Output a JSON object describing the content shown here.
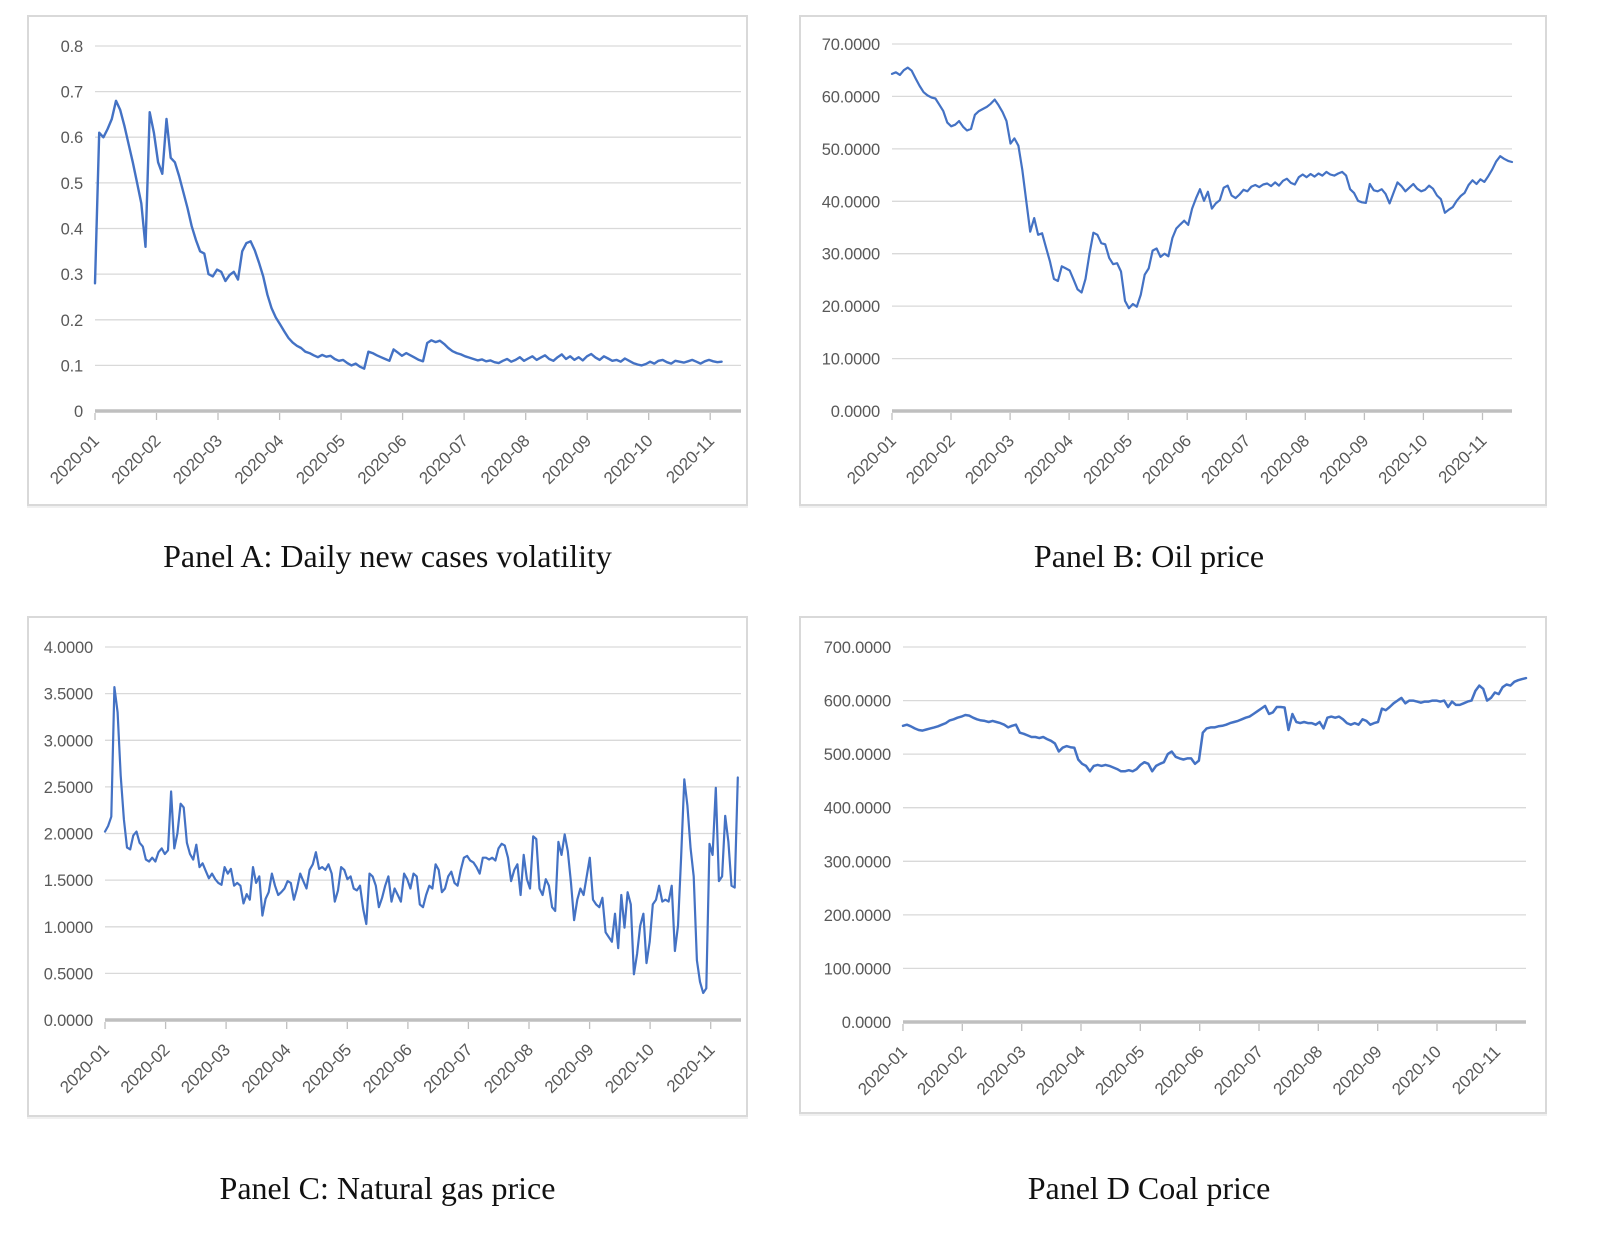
{
  "page": {
    "background": "#ffffff"
  },
  "colors": {
    "line": "#4472C4",
    "grid": "#D9D9D9",
    "axis": "#BFBFBF",
    "tick_text": "#595959",
    "caption_text": "#111111",
    "panel_border": "#D9D9D9"
  },
  "chart_data": [
    {
      "id": "panel-a",
      "type": "line",
      "title": "Panel A: Daily new cases volatility",
      "xlabel": "",
      "ylabel": "",
      "grid": true,
      "legend": false,
      "ylim": [
        0,
        0.8
      ],
      "ytick_labels": [
        "0",
        "0.1",
        "0.2",
        "0.3",
        "0.4",
        "0.5",
        "0.6",
        "0.7",
        "0.8"
      ],
      "x_tick_labels": [
        "2020-01",
        "2020-02",
        "2020-03",
        "2020-04",
        "2020-05",
        "2020-06",
        "2020-07",
        "2020-08",
        "2020-09",
        "2020-10",
        "2020-11"
      ],
      "values": [
        0.28,
        0.61,
        0.6,
        0.618,
        0.64,
        0.68,
        0.66,
        0.625,
        0.585,
        0.545,
        0.5,
        0.455,
        0.36,
        0.655,
        0.61,
        0.545,
        0.52,
        0.64,
        0.555,
        0.545,
        0.515,
        0.48,
        0.445,
        0.405,
        0.375,
        0.35,
        0.345,
        0.3,
        0.295,
        0.31,
        0.305,
        0.285,
        0.298,
        0.305,
        0.288,
        0.35,
        0.368,
        0.372,
        0.352,
        0.325,
        0.295,
        0.255,
        0.225,
        0.205,
        0.19,
        0.175,
        0.16,
        0.15,
        0.143,
        0.138,
        0.13,
        0.127,
        0.122,
        0.118,
        0.123,
        0.119,
        0.121,
        0.114,
        0.11,
        0.112,
        0.105,
        0.1,
        0.104,
        0.097,
        0.093,
        0.13,
        0.127,
        0.122,
        0.118,
        0.114,
        0.11,
        0.135,
        0.128,
        0.121,
        0.127,
        0.122,
        0.117,
        0.112,
        0.109,
        0.149,
        0.155,
        0.151,
        0.154,
        0.147,
        0.138,
        0.131,
        0.127,
        0.124,
        0.12,
        0.117,
        0.114,
        0.111,
        0.113,
        0.109,
        0.111,
        0.107,
        0.105,
        0.11,
        0.114,
        0.108,
        0.112,
        0.118,
        0.11,
        0.115,
        0.12,
        0.112,
        0.117,
        0.122,
        0.114,
        0.11,
        0.118,
        0.124,
        0.114,
        0.12,
        0.112,
        0.118,
        0.111,
        0.12,
        0.125,
        0.117,
        0.112,
        0.12,
        0.115,
        0.11,
        0.112,
        0.108,
        0.115,
        0.11,
        0.105,
        0.102,
        0.1,
        0.103,
        0.108,
        0.104,
        0.11,
        0.112,
        0.107,
        0.104,
        0.11,
        0.108,
        0.106,
        0.109,
        0.112,
        0.108,
        0.104,
        0.109,
        0.112,
        0.109,
        0.107,
        0.108
      ]
    },
    {
      "id": "panel-b",
      "type": "line",
      "title": "Panel B: Oil price",
      "xlabel": "",
      "ylabel": "",
      "grid": true,
      "legend": false,
      "ylim": [
        0,
        70
      ],
      "ytick_labels": [
        "0.0000",
        "10.0000",
        "20.0000",
        "30.0000",
        "40.0000",
        "50.0000",
        "60.0000",
        "70.0000"
      ],
      "x_tick_labels": [
        "2020-01",
        "2020-02",
        "2020-03",
        "2020-04",
        "2020-05",
        "2020-06",
        "2020-07",
        "2020-08",
        "2020-09",
        "2020-10",
        "2020-11"
      ],
      "values": [
        64.3,
        64.6,
        64.1,
        65.0,
        65.5,
        64.9,
        63.4,
        62.0,
        60.8,
        60.2,
        59.8,
        59.6,
        58.4,
        57.2,
        55.0,
        54.3,
        54.6,
        55.3,
        54.2,
        53.5,
        53.8,
        56.5,
        57.2,
        57.6,
        58.0,
        58.6,
        59.4,
        58.3,
        57.0,
        55.3,
        51.0,
        52.0,
        50.6,
        46.0,
        40.0,
        34.2,
        36.8,
        33.6,
        33.9,
        31.2,
        28.5,
        25.2,
        24.8,
        27.6,
        27.2,
        26.8,
        25.0,
        23.2,
        22.6,
        25.2,
        30.0,
        34.0,
        33.6,
        32.0,
        31.8,
        29.2,
        28.0,
        28.2,
        26.6,
        21.0,
        19.6,
        20.4,
        19.9,
        22.2,
        26.0,
        27.2,
        30.6,
        31.0,
        29.4,
        30.0,
        29.5,
        33.0,
        34.8,
        35.6,
        36.3,
        35.5,
        38.6,
        40.6,
        42.3,
        40.1,
        41.8,
        38.6,
        39.6,
        40.2,
        42.6,
        43.0,
        41.1,
        40.6,
        41.3,
        42.2,
        41.9,
        42.8,
        43.1,
        42.7,
        43.2,
        43.4,
        42.9,
        43.6,
        43.0,
        43.9,
        44.3,
        43.5,
        43.2,
        44.6,
        45.1,
        44.6,
        45.2,
        44.7,
        45.3,
        44.9,
        45.6,
        45.1,
        44.9,
        45.3,
        45.6,
        44.9,
        42.3,
        41.6,
        40.1,
        39.8,
        39.7,
        43.3,
        42.1,
        41.9,
        42.3,
        41.4,
        39.6,
        41.6,
        43.6,
        42.9,
        41.9,
        42.6,
        43.3,
        42.4,
        41.9,
        42.2,
        43.0,
        42.4,
        41.1,
        40.4,
        37.8,
        38.4,
        38.9,
        40.1,
        41.0,
        41.6,
        43.1,
        44.0,
        43.3,
        44.2,
        43.7,
        44.8,
        46.1,
        47.6,
        48.6,
        48.1,
        47.7,
        47.5
      ]
    },
    {
      "id": "panel-c",
      "type": "line",
      "title": "Panel C: Natural gas price",
      "xlabel": "",
      "ylabel": "",
      "grid": true,
      "legend": false,
      "ylim": [
        0,
        4
      ],
      "ytick_labels": [
        "0.0000",
        "0.5000",
        "1.0000",
        "1.5000",
        "2.0000",
        "2.5000",
        "3.0000",
        "3.5000",
        "4.0000"
      ],
      "x_tick_labels": [
        "2020-01",
        "2020-02",
        "2020-03",
        "2020-04",
        "2020-05",
        "2020-06",
        "2020-07",
        "2020-08",
        "2020-09",
        "2020-10",
        "2020-11"
      ],
      "values": [
        2.02,
        2.08,
        2.18,
        3.57,
        3.3,
        2.62,
        2.15,
        1.85,
        1.83,
        1.98,
        2.02,
        1.9,
        1.86,
        1.72,
        1.7,
        1.74,
        1.7,
        1.8,
        1.84,
        1.78,
        1.82,
        2.45,
        1.84,
        2.0,
        2.32,
        2.28,
        1.9,
        1.78,
        1.72,
        1.88,
        1.64,
        1.68,
        1.6,
        1.52,
        1.57,
        1.51,
        1.47,
        1.45,
        1.64,
        1.57,
        1.62,
        1.44,
        1.47,
        1.44,
        1.25,
        1.35,
        1.29,
        1.64,
        1.47,
        1.54,
        1.12,
        1.3,
        1.37,
        1.57,
        1.44,
        1.34,
        1.37,
        1.41,
        1.49,
        1.47,
        1.29,
        1.41,
        1.57,
        1.49,
        1.41,
        1.61,
        1.67,
        1.8,
        1.62,
        1.64,
        1.61,
        1.67,
        1.57,
        1.27,
        1.39,
        1.64,
        1.61,
        1.51,
        1.54,
        1.41,
        1.39,
        1.44,
        1.19,
        1.03,
        1.57,
        1.54,
        1.44,
        1.21,
        1.31,
        1.44,
        1.54,
        1.27,
        1.41,
        1.34,
        1.27,
        1.57,
        1.51,
        1.41,
        1.57,
        1.54,
        1.24,
        1.21,
        1.34,
        1.44,
        1.41,
        1.67,
        1.61,
        1.37,
        1.41,
        1.54,
        1.59,
        1.47,
        1.44,
        1.61,
        1.74,
        1.76,
        1.71,
        1.69,
        1.64,
        1.57,
        1.74,
        1.74,
        1.72,
        1.74,
        1.71,
        1.84,
        1.89,
        1.87,
        1.74,
        1.49,
        1.61,
        1.67,
        1.34,
        1.77,
        1.51,
        1.41,
        1.97,
        1.94,
        1.41,
        1.34,
        1.51,
        1.44,
        1.21,
        1.17,
        1.91,
        1.77,
        1.99,
        1.81,
        1.47,
        1.07,
        1.29,
        1.41,
        1.34,
        1.54,
        1.74,
        1.29,
        1.24,
        1.21,
        1.31,
        0.94,
        0.89,
        0.84,
        1.14,
        0.77,
        1.34,
        0.99,
        1.37,
        1.24,
        0.49,
        0.71,
        1.01,
        1.14,
        0.61,
        0.84,
        1.24,
        1.29,
        1.44,
        1.27,
        1.29,
        1.27,
        1.44,
        0.74,
        1.01,
        1.74,
        2.58,
        2.3,
        1.84,
        1.54,
        0.64,
        0.41,
        0.29,
        0.34,
        1.89,
        1.77,
        2.49,
        1.49,
        1.54,
        2.19,
        1.91,
        1.44,
        1.42,
        2.6
      ]
    },
    {
      "id": "panel-d",
      "type": "line",
      "title": "Panel D Coal price",
      "xlabel": "",
      "ylabel": "",
      "grid": true,
      "legend": false,
      "ylim": [
        0,
        700
      ],
      "ytick_labels": [
        "0.0000",
        "100.0000",
        "200.0000",
        "300.0000",
        "400.0000",
        "500.0000",
        "600.0000",
        "700.0000"
      ],
      "x_tick_labels": [
        "2020-01",
        "2020-02",
        "2020-03",
        "2020-04",
        "2020-05",
        "2020-06",
        "2020-07",
        "2020-08",
        "2020-09",
        "2020-10",
        "2020-11"
      ],
      "values": [
        553,
        555,
        552,
        548,
        545,
        544,
        546,
        548,
        550,
        552,
        555,
        558,
        563,
        565,
        568,
        570,
        573,
        572,
        568,
        565,
        563,
        562,
        560,
        562,
        560,
        558,
        555,
        550,
        553,
        555,
        540,
        538,
        535,
        532,
        532,
        530,
        532,
        528,
        525,
        520,
        505,
        512,
        515,
        513,
        512,
        490,
        482,
        478,
        468,
        478,
        480,
        478,
        480,
        478,
        475,
        472,
        468,
        468,
        470,
        468,
        472,
        480,
        485,
        482,
        468,
        478,
        482,
        485,
        500,
        505,
        495,
        492,
        490,
        492,
        492,
        482,
        488,
        540,
        548,
        550,
        550,
        552,
        553,
        555,
        558,
        560,
        562,
        565,
        568,
        570,
        575,
        580,
        585,
        590,
        575,
        578,
        588,
        588,
        587,
        545,
        575,
        560,
        558,
        560,
        558,
        558,
        555,
        560,
        548,
        568,
        570,
        568,
        570,
        565,
        558,
        555,
        558,
        555,
        565,
        562,
        555,
        558,
        560,
        585,
        582,
        588,
        595,
        600,
        605,
        595,
        600,
        600,
        598,
        596,
        598,
        598,
        600,
        600,
        598,
        600,
        588,
        598,
        592,
        592,
        595,
        598,
        600,
        618,
        628,
        622,
        600,
        605,
        615,
        612,
        625,
        630,
        628,
        635,
        638,
        640,
        642
      ]
    }
  ]
}
